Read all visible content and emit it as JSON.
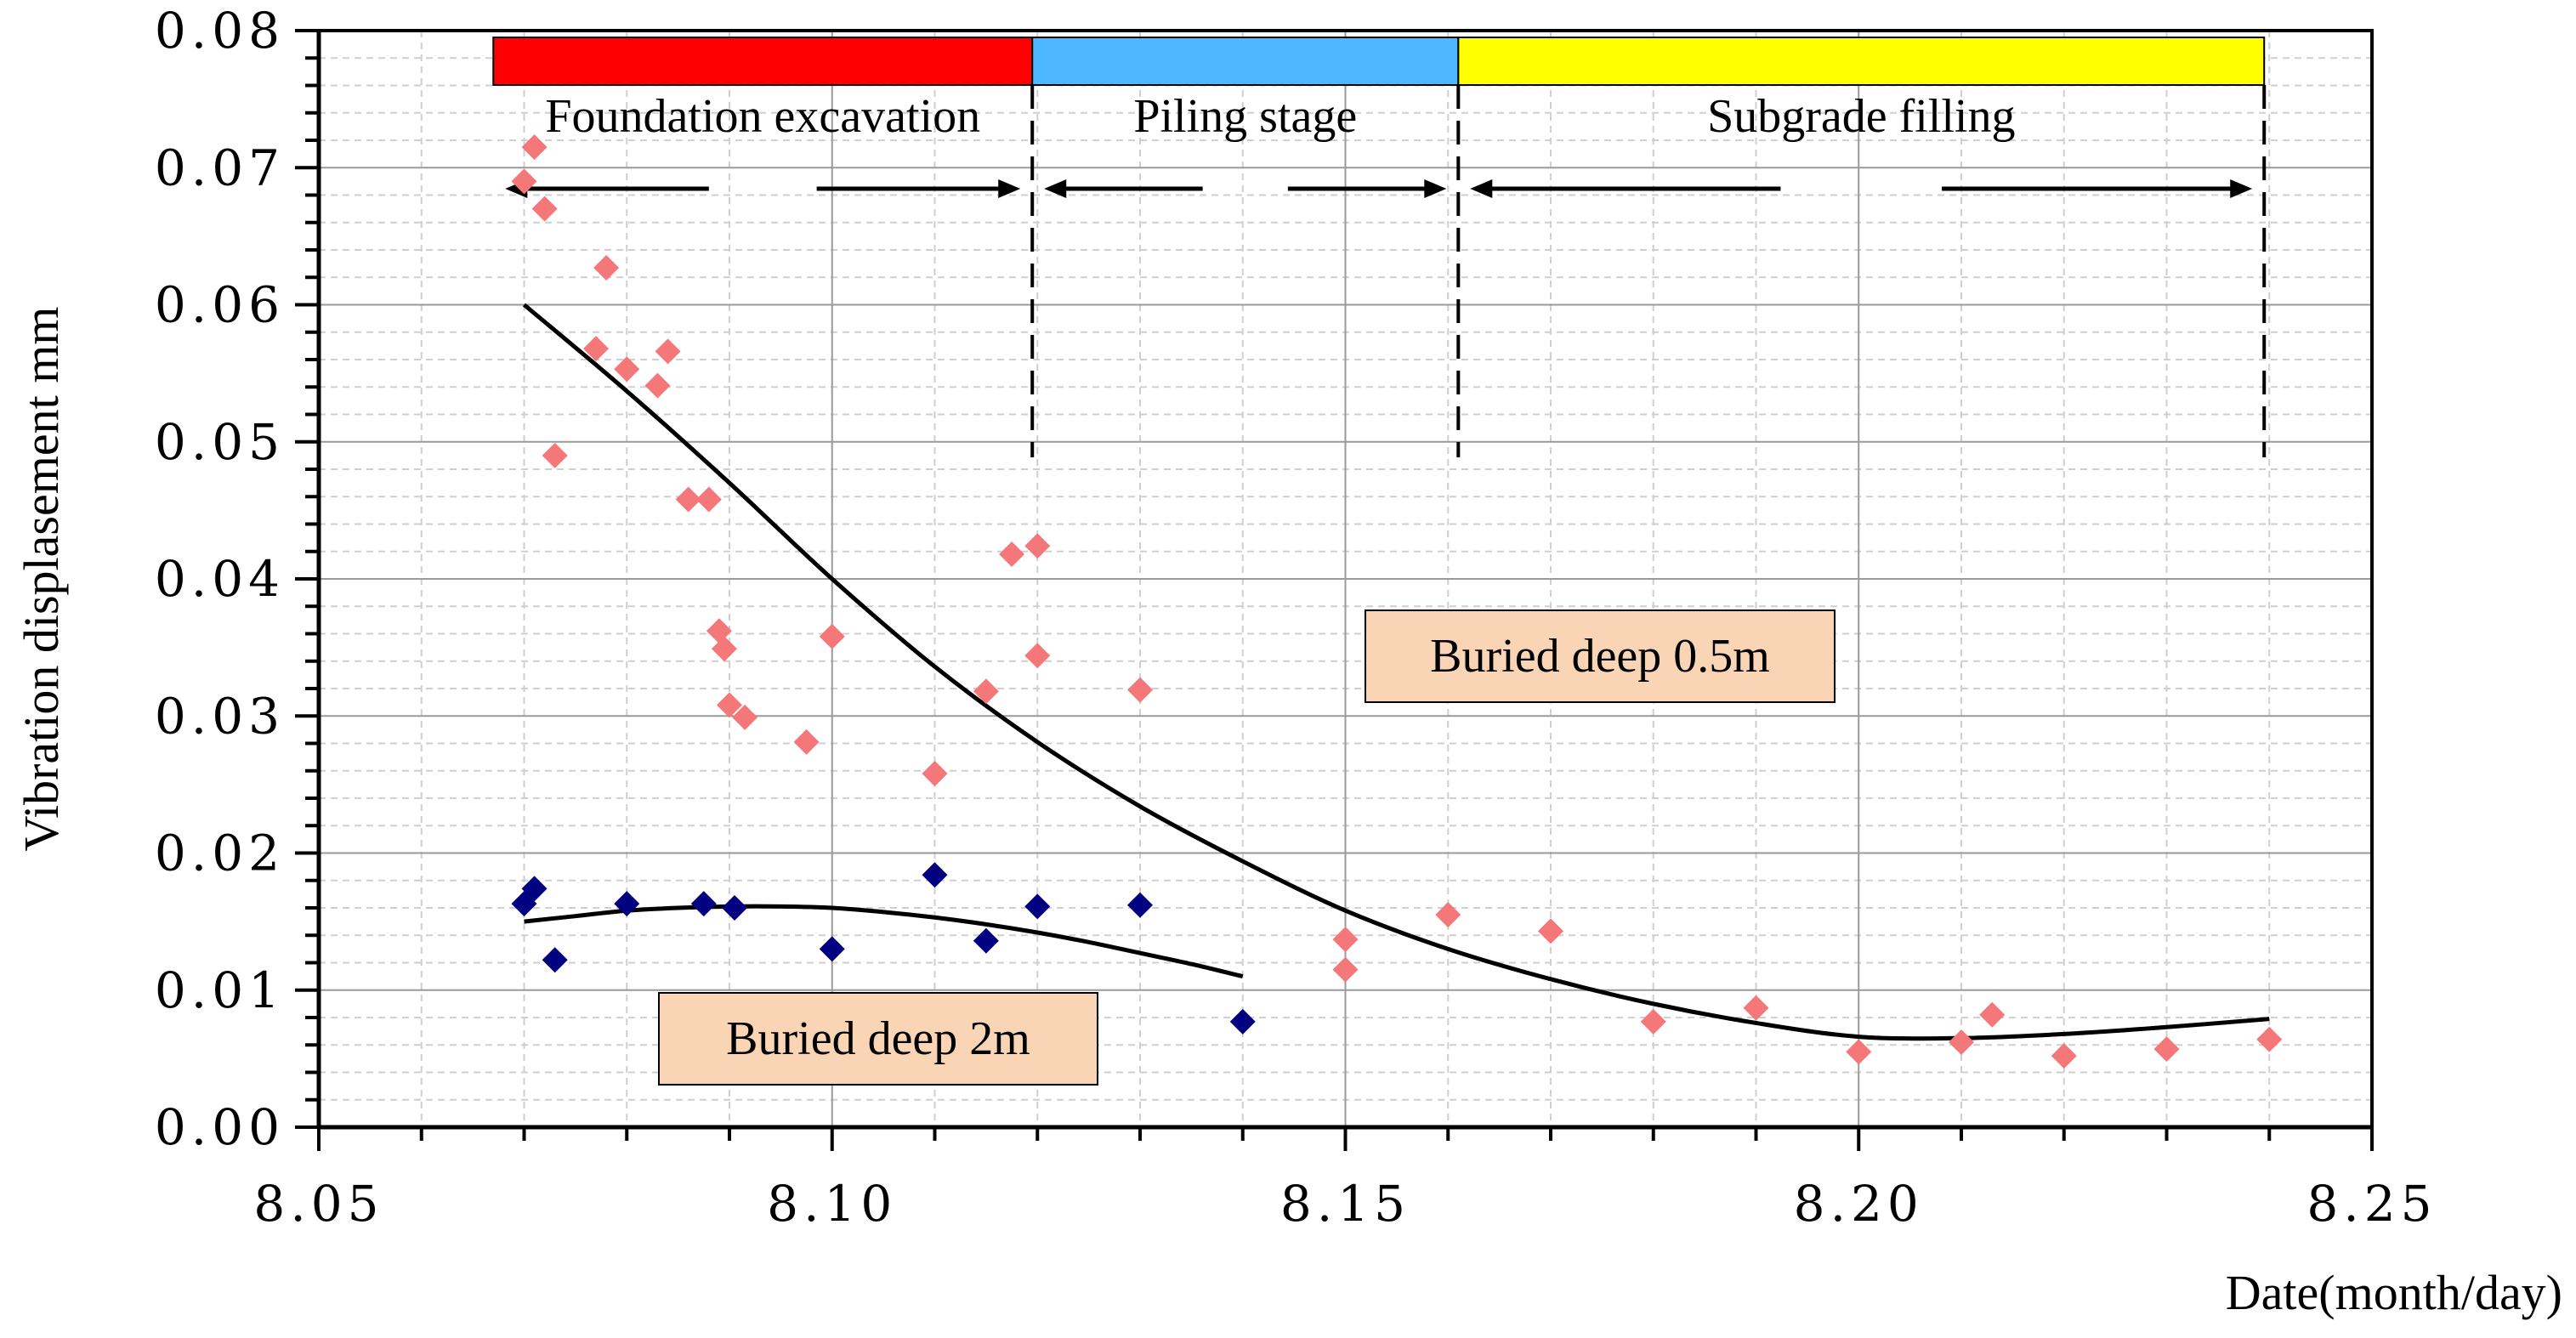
{
  "chart_data": {
    "type": "scatter",
    "title": "",
    "xlabel": "Date(month/day)",
    "ylabel": "Vibration displasement mm",
    "xlim": [
      8.05,
      8.25
    ],
    "ylim": [
      0.0,
      0.08
    ],
    "x_ticks": [
      {
        "value": 8.05,
        "label": "8.05"
      },
      {
        "value": 8.1,
        "label": "8.10"
      },
      {
        "value": 8.15,
        "label": "8.15"
      },
      {
        "value": 8.2,
        "label": "8.20"
      },
      {
        "value": 8.25,
        "label": "8.25"
      }
    ],
    "y_ticks": [
      {
        "value": 0.0,
        "label": "0.00"
      },
      {
        "value": 0.01,
        "label": "0.01"
      },
      {
        "value": 0.02,
        "label": "0.02"
      },
      {
        "value": 0.03,
        "label": "0.03"
      },
      {
        "value": 0.04,
        "label": "0.04"
      },
      {
        "value": 0.05,
        "label": "0.05"
      },
      {
        "value": 0.06,
        "label": "0.06"
      },
      {
        "value": 0.07,
        "label": "0.07"
      },
      {
        "value": 0.08,
        "label": "0.08"
      }
    ],
    "grid": true,
    "stages": [
      {
        "label": "Foundation excavation",
        "start": 8.067,
        "end": 8.1195,
        "color": "#ff0000"
      },
      {
        "label": "Piling stage",
        "start": 8.1195,
        "end": 8.161,
        "color": "#4db8ff"
      },
      {
        "label": "Subgrade filling",
        "start": 8.161,
        "end": 8.2395,
        "color": "#ffff00"
      }
    ],
    "series": [
      {
        "name": "Buried deep 0.5m",
        "marker": "diamond",
        "color": "#f4787a",
        "points": [
          [
            8.07,
            0.069
          ],
          [
            8.071,
            0.0715
          ],
          [
            8.072,
            0.067
          ],
          [
            8.073,
            0.049
          ],
          [
            8.077,
            0.0568
          ],
          [
            8.078,
            0.0627
          ],
          [
            8.08,
            0.0553
          ],
          [
            8.083,
            0.0541
          ],
          [
            8.084,
            0.0566
          ],
          [
            8.086,
            0.0458
          ],
          [
            8.088,
            0.0458
          ],
          [
            8.089,
            0.0362
          ],
          [
            8.0895,
            0.0349
          ],
          [
            8.09,
            0.0308
          ],
          [
            8.0915,
            0.0299
          ],
          [
            8.0975,
            0.0281
          ],
          [
            8.1,
            0.0358
          ],
          [
            8.11,
            0.0258
          ],
          [
            8.115,
            0.0318
          ],
          [
            8.1175,
            0.0418
          ],
          [
            8.12,
            0.0424
          ],
          [
            8.12,
            0.0344
          ],
          [
            8.13,
            0.0319
          ],
          [
            8.15,
            0.0137
          ],
          [
            8.15,
            0.0115
          ],
          [
            8.16,
            0.0155
          ],
          [
            8.17,
            0.0143
          ],
          [
            8.18,
            0.0077
          ],
          [
            8.19,
            0.0087
          ],
          [
            8.2,
            0.0055
          ],
          [
            8.21,
            0.0062
          ],
          [
            8.213,
            0.0082
          ],
          [
            8.22,
            0.0052
          ],
          [
            8.23,
            0.0057
          ],
          [
            8.24,
            0.0064
          ]
        ],
        "trend": [
          [
            8.07,
            0.06
          ],
          [
            8.08,
            0.0537
          ],
          [
            8.09,
            0.047
          ],
          [
            8.1,
            0.04
          ],
          [
            8.11,
            0.0336
          ],
          [
            8.12,
            0.0281
          ],
          [
            8.13,
            0.0234
          ],
          [
            8.14,
            0.0194
          ],
          [
            8.15,
            0.0158
          ],
          [
            8.16,
            0.013
          ],
          [
            8.17,
            0.0108
          ],
          [
            8.18,
            0.009
          ],
          [
            8.19,
            0.0076
          ],
          [
            8.2,
            0.0066
          ],
          [
            8.21,
            0.0065
          ],
          [
            8.22,
            0.0068
          ],
          [
            8.23,
            0.0073
          ],
          [
            8.24,
            0.0079
          ]
        ]
      },
      {
        "name": "Buried deep 2m",
        "marker": "diamond",
        "color": "#000080",
        "points": [
          [
            8.07,
            0.0163
          ],
          [
            8.071,
            0.0174
          ],
          [
            8.073,
            0.0122
          ],
          [
            8.08,
            0.0163
          ],
          [
            8.0875,
            0.0163
          ],
          [
            8.0905,
            0.016
          ],
          [
            8.1,
            0.013
          ],
          [
            8.11,
            0.0184
          ],
          [
            8.115,
            0.0136
          ],
          [
            8.12,
            0.0161
          ],
          [
            8.13,
            0.0162
          ],
          [
            8.14,
            0.0077
          ]
        ],
        "trend": [
          [
            8.07,
            0.015
          ],
          [
            8.075,
            0.0154
          ],
          [
            8.08,
            0.0158
          ],
          [
            8.085,
            0.016
          ],
          [
            8.09,
            0.0161
          ],
          [
            8.095,
            0.0161
          ],
          [
            8.1,
            0.016
          ],
          [
            8.105,
            0.0157
          ],
          [
            8.11,
            0.0153
          ],
          [
            8.115,
            0.0148
          ],
          [
            8.12,
            0.0142
          ],
          [
            8.125,
            0.0135
          ],
          [
            8.13,
            0.0127
          ],
          [
            8.135,
            0.0119
          ],
          [
            8.14,
            0.011
          ]
        ]
      }
    ],
    "labels": {
      "shallow": "Buried deep 0.5m",
      "deep": "Buried deep 2m"
    },
    "colors": {
      "label_box_fill": "#fad5b5",
      "axis": "#000000",
      "grid_major": "#9a9a9a",
      "grid_minor": "#cfcfcf"
    }
  }
}
